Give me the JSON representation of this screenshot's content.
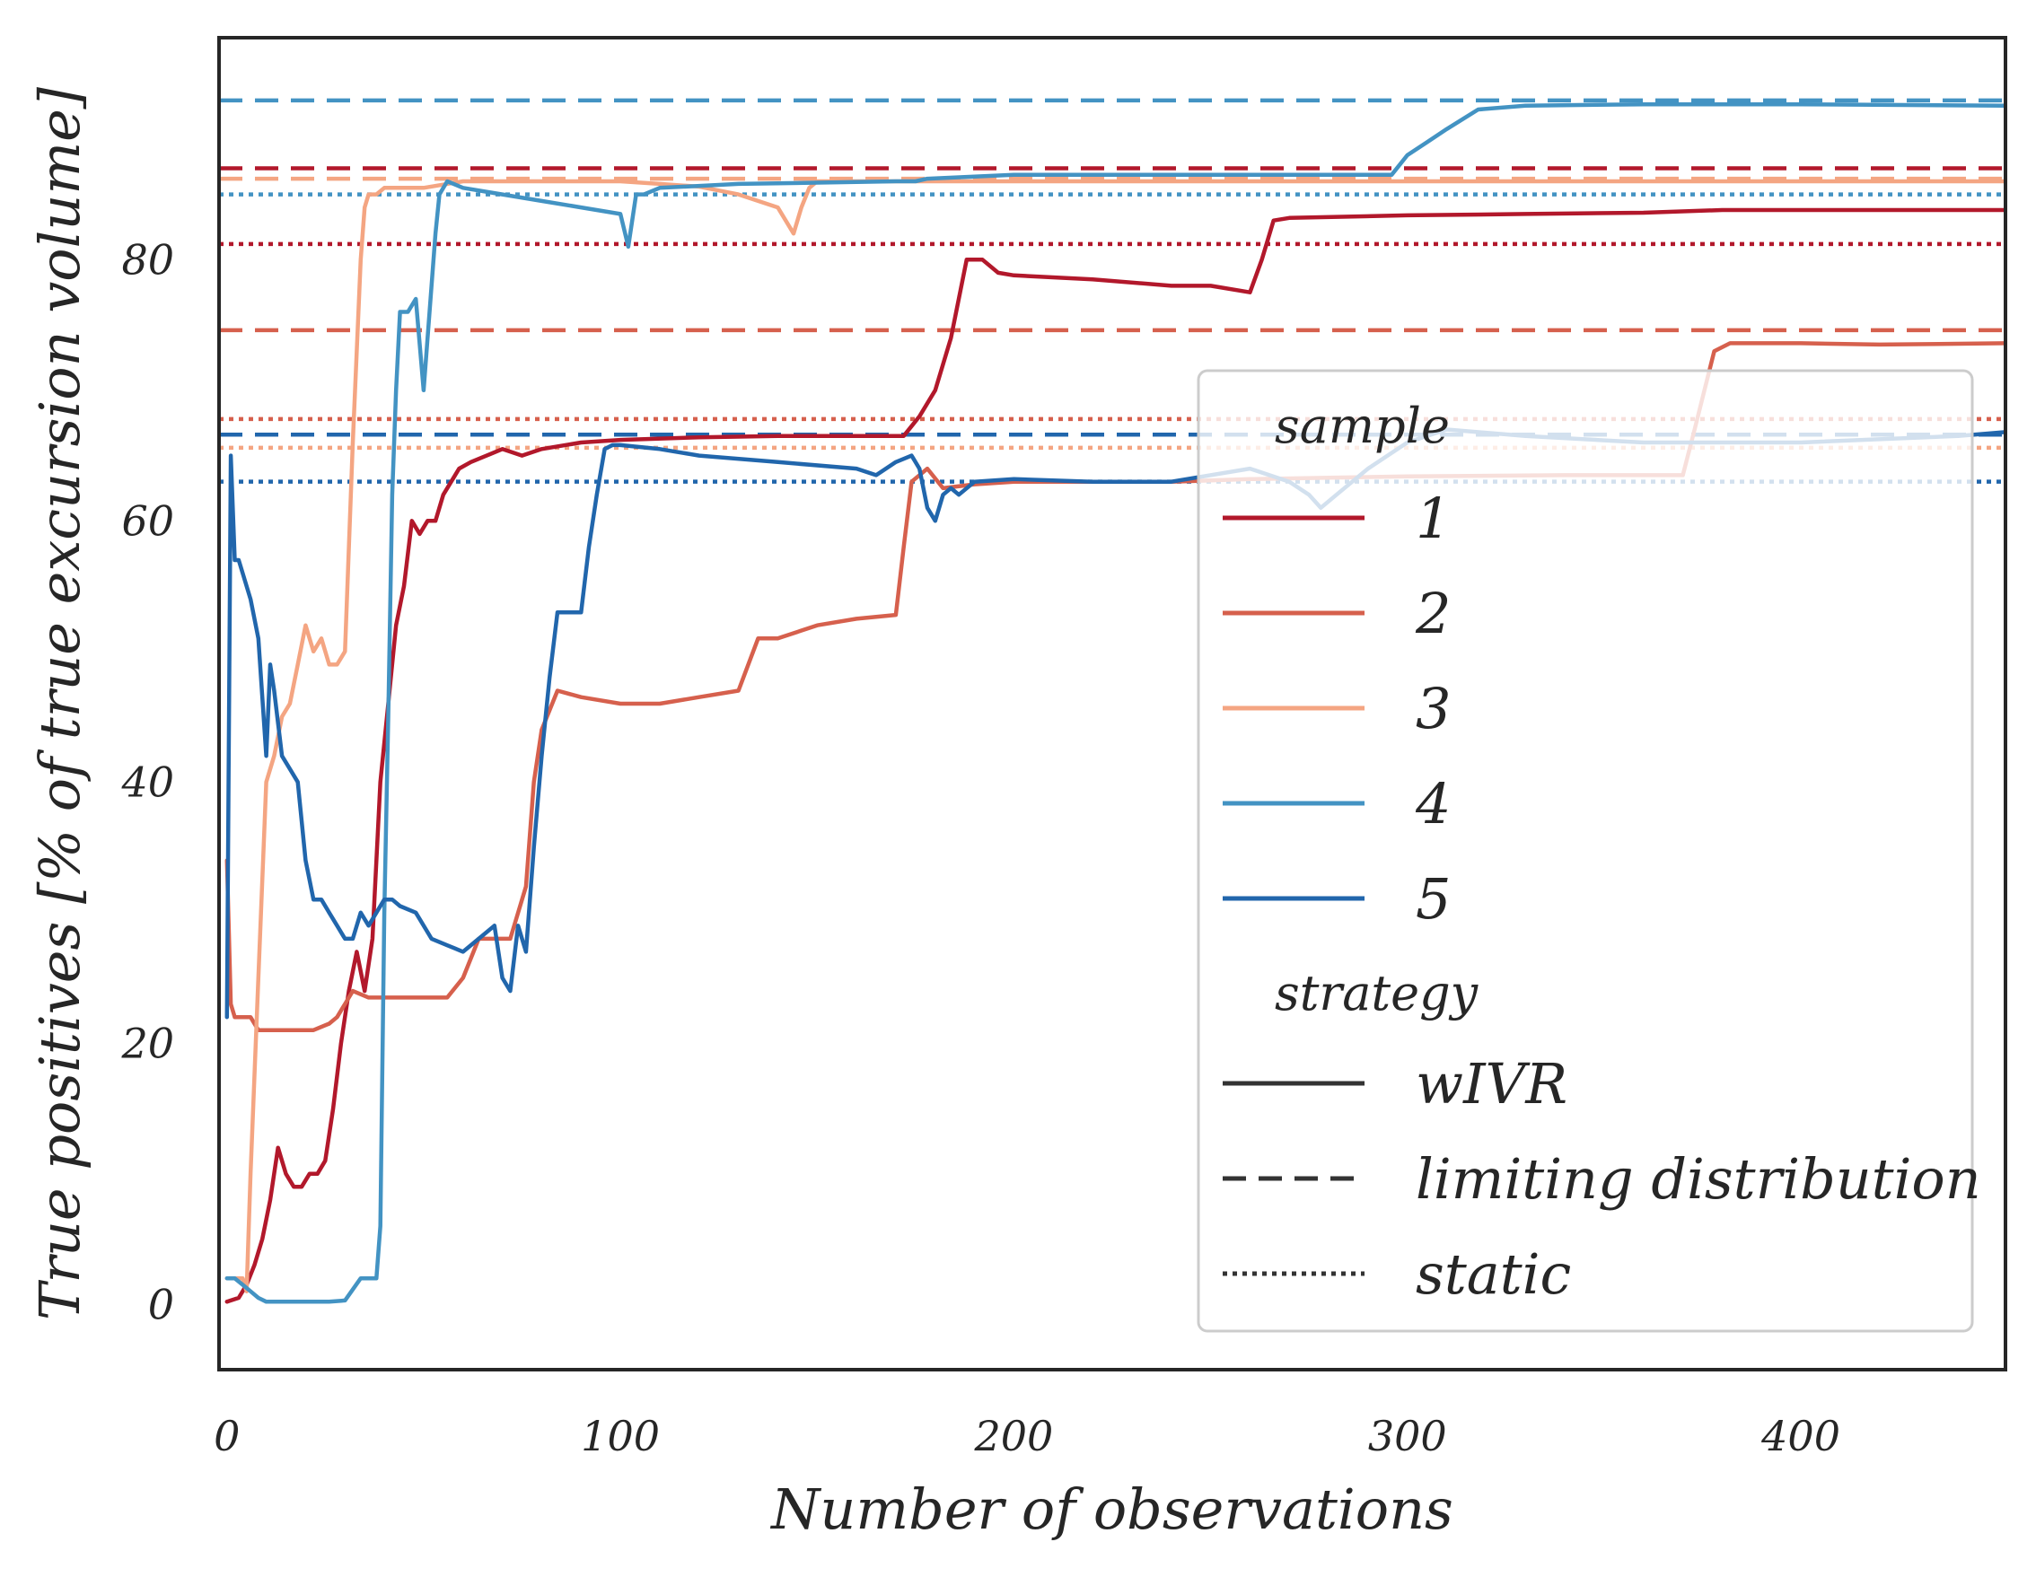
{
  "chart_data": {
    "type": "line",
    "xlabel": "Number of observations",
    "ylabel": "True positives [% of true excursion volume]",
    "xlim": [
      -2,
      452
    ],
    "ylim": [
      -5,
      97
    ],
    "xticks": [
      0,
      100,
      200,
      300,
      400
    ],
    "yticks": [
      0,
      20,
      40,
      60,
      80
    ],
    "grid": false,
    "legend": {
      "placement": "lower-right",
      "sample_title": "sample",
      "strategy_title": "strategy",
      "samples": [
        "1",
        "2",
        "3",
        "4",
        "5"
      ],
      "strategies": [
        "wIVR",
        "limiting distribution",
        "static"
      ]
    },
    "colors": {
      "1": "#b2182b",
      "2": "#d6604d",
      "3": "#f4a582",
      "4": "#4393c3",
      "5": "#2166ac",
      "legend_line": "#333333"
    },
    "reference_lines": [
      {
        "sample": "1",
        "strategy": "limiting distribution",
        "y": 87.0
      },
      {
        "sample": "1",
        "strategy": "static",
        "y": 81.2
      },
      {
        "sample": "2",
        "strategy": "limiting distribution",
        "y": 74.6
      },
      {
        "sample": "2",
        "strategy": "static",
        "y": 67.8
      },
      {
        "sample": "3",
        "strategy": "limiting distribution",
        "y": 86.2
      },
      {
        "sample": "3",
        "strategy": "static",
        "y": 65.6
      },
      {
        "sample": "4",
        "strategy": "limiting distribution",
        "y": 92.2
      },
      {
        "sample": "4",
        "strategy": "static",
        "y": 85.0
      },
      {
        "sample": "5",
        "strategy": "limiting distribution",
        "y": 66.6
      },
      {
        "sample": "5",
        "strategy": "static",
        "y": 63.0
      }
    ],
    "series": [
      {
        "name": "1",
        "strategy": "wIVR",
        "x": [
          0,
          3,
          5,
          7,
          9,
          11,
          13,
          15,
          17,
          19,
          21,
          23,
          25,
          27,
          29,
          31,
          33,
          35,
          37,
          39,
          41,
          43,
          45,
          47,
          49,
          51,
          53,
          55,
          57,
          59,
          62,
          66,
          70,
          75,
          80,
          90,
          100,
          120,
          140,
          160,
          172,
          176,
          180,
          184,
          188,
          192,
          196,
          200,
          220,
          240,
          250,
          260,
          263,
          266,
          270,
          300,
          330,
          360,
          380,
          420,
          452
        ],
        "y": [
          0.2,
          0.5,
          1.5,
          3,
          5,
          8,
          12,
          10,
          9,
          9,
          10,
          10,
          11,
          15,
          20,
          24,
          27,
          24,
          28,
          40,
          46,
          52,
          55,
          60,
          59,
          60,
          60,
          62,
          63,
          64,
          64.5,
          65,
          65.5,
          65,
          65.5,
          66,
          66.2,
          66.4,
          66.5,
          66.5,
          66.5,
          68,
          70,
          74,
          80,
          80,
          79,
          78.8,
          78.5,
          78,
          78,
          77.5,
          80,
          83,
          83.2,
          83.4,
          83.5,
          83.6,
          83.8,
          83.8,
          83.8
        ]
      },
      {
        "name": "2",
        "strategy": "wIVR",
        "x": [
          0,
          1,
          2,
          4,
          6,
          8,
          10,
          14,
          18,
          22,
          26,
          28,
          30,
          32,
          36,
          40,
          44,
          50,
          56,
          60,
          64,
          68,
          72,
          76,
          78,
          80,
          84,
          90,
          100,
          110,
          120,
          130,
          135,
          140,
          150,
          160,
          170,
          172,
          174,
          178,
          182,
          190,
          200,
          220,
          240,
          260,
          280,
          300,
          340,
          370,
          373,
          378,
          382,
          400,
          420,
          452
        ],
        "y": [
          34,
          23,
          22,
          22,
          22,
          21,
          21,
          21,
          21,
          21,
          21.5,
          22,
          23,
          24,
          23.5,
          23.5,
          23.5,
          23.5,
          23.5,
          25,
          28,
          28,
          28,
          32,
          40,
          44,
          47,
          46.5,
          46,
          46,
          46.5,
          47,
          51,
          51,
          52,
          52.5,
          52.8,
          58,
          63,
          64,
          62.5,
          62.8,
          63,
          63,
          63,
          63.2,
          63.3,
          63.4,
          63.5,
          63.5,
          67,
          73,
          73.6,
          73.6,
          73.5,
          73.6
        ]
      },
      {
        "name": "3",
        "strategy": "wIVR",
        "x": [
          0,
          2,
          4,
          5,
          6,
          8,
          10,
          12,
          14,
          16,
          18,
          20,
          22,
          24,
          26,
          28,
          30,
          32,
          34,
          35,
          36,
          37,
          38,
          40,
          50,
          60,
          70,
          80,
          90,
          100,
          110,
          120,
          130,
          140,
          144,
          146,
          148,
          150,
          160,
          180,
          200,
          250,
          300,
          350,
          400,
          452
        ],
        "y": [
          2,
          2,
          2,
          1,
          10,
          25,
          40,
          42,
          45,
          46,
          49,
          52,
          50,
          51,
          49,
          49,
          50,
          66,
          80,
          84,
          85,
          85,
          85,
          85.5,
          85.5,
          86,
          86,
          86,
          86,
          86,
          85.8,
          85.6,
          85,
          84,
          82,
          84,
          85.5,
          86,
          86,
          86,
          86,
          86,
          86,
          86,
          86,
          86
        ]
      },
      {
        "name": "4",
        "strategy": "wIVR",
        "x": [
          0,
          2,
          4,
          6,
          8,
          10,
          14,
          18,
          22,
          26,
          30,
          34,
          36,
          38,
          39,
          40,
          41,
          42,
          43,
          44,
          46,
          48,
          50,
          51,
          52,
          53,
          54,
          56,
          60,
          70,
          80,
          90,
          100,
          102,
          104,
          106,
          110,
          130,
          150,
          170,
          175,
          178,
          200,
          250,
          296,
          300,
          305,
          310,
          318,
          330,
          360,
          400,
          452
        ],
        "y": [
          2,
          2,
          1.5,
          1,
          0.5,
          0.2,
          0.2,
          0.2,
          0.2,
          0.2,
          0.3,
          2,
          2,
          2,
          6,
          30,
          45,
          62,
          70,
          76,
          76,
          77,
          70,
          74,
          78,
          82,
          85,
          86,
          85.5,
          85,
          84.5,
          84,
          83.5,
          81,
          85,
          85,
          85.5,
          85.8,
          85.9,
          86,
          86,
          86.2,
          86.5,
          86.5,
          86.5,
          88,
          89,
          90,
          91.5,
          91.8,
          91.9,
          91.9,
          91.8
        ]
      },
      {
        "name": "5",
        "strategy": "wIVR",
        "x": [
          0,
          1,
          2,
          3,
          4,
          6,
          8,
          10,
          11,
          12,
          14,
          16,
          18,
          20,
          22,
          24,
          26,
          28,
          30,
          32,
          34,
          36,
          38,
          40,
          42,
          44,
          48,
          52,
          56,
          60,
          64,
          68,
          70,
          72,
          74,
          76,
          78,
          80,
          82,
          84,
          86,
          88,
          90,
          92,
          94,
          96,
          98,
          100,
          110,
          120,
          140,
          160,
          165,
          170,
          174,
          176,
          178,
          180,
          182,
          184,
          186,
          190,
          200,
          220,
          240,
          260,
          270,
          275,
          278,
          282,
          290,
          300,
          310,
          330,
          360,
          400,
          440,
          452
        ],
        "y": [
          22,
          65,
          57,
          57,
          56,
          54,
          51,
          42,
          49,
          47,
          42,
          41,
          40,
          34,
          31,
          31,
          30,
          29,
          28,
          28,
          30,
          29,
          30,
          31,
          31,
          30.5,
          30,
          28,
          27.5,
          27,
          28,
          29,
          25,
          24,
          29,
          27,
          35,
          42,
          48,
          53,
          53,
          53,
          53,
          58,
          62,
          65.5,
          65.8,
          65.8,
          65.5,
          65,
          64.5,
          64,
          63.5,
          64.5,
          65,
          64,
          61,
          60,
          62,
          62.5,
          62,
          63,
          63.2,
          63,
          63,
          64,
          63,
          62,
          61,
          62,
          64,
          66,
          67,
          66.5,
          66,
          66,
          66.5,
          66.8
        ]
      }
    ]
  }
}
